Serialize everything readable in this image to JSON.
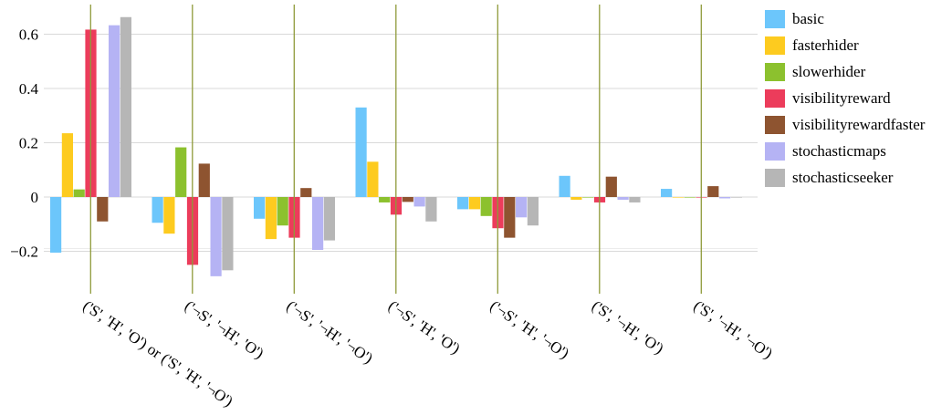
{
  "chart_data": {
    "type": "bar",
    "categories": [
      "('S', 'H', 'O') or ('S', 'H', '¬O')",
      "('¬S', '¬H', 'O')",
      "('¬S', '¬H', '¬O')",
      "('¬S', 'H', 'O')",
      "('¬S', 'H', '¬O')",
      "('S', '¬H', 'O')",
      "('S', '¬H', '¬O')"
    ],
    "series": [
      {
        "name": "basic",
        "color": "#6cc6fb",
        "values": [
          -0.205,
          -0.095,
          -0.08,
          0.33,
          -0.045,
          0.078,
          0.03
        ]
      },
      {
        "name": "fasterhider",
        "color": "#fdcb1f",
        "values": [
          0.235,
          -0.135,
          -0.155,
          0.13,
          -0.045,
          -0.01,
          0.0
        ]
      },
      {
        "name": "slowerhider",
        "color": "#8cc12e",
        "values": [
          0.028,
          0.183,
          -0.105,
          -0.02,
          -0.07,
          0.0,
          0.0
        ]
      },
      {
        "name": "visibilityreward",
        "color": "#ec3c5b",
        "values": [
          0.617,
          -0.25,
          -0.15,
          -0.065,
          -0.115,
          -0.02,
          0.0
        ]
      },
      {
        "name": "visibilityrewardfaster",
        "color": "#8e5430",
        "values": [
          -0.09,
          0.123,
          0.033,
          -0.018,
          -0.15,
          0.075,
          0.04
        ]
      },
      {
        "name": "stochasticmaps",
        "color": "#b5b3f4",
        "values": [
          0.633,
          -0.292,
          -0.195,
          -0.035,
          -0.075,
          -0.01,
          -0.005
        ]
      },
      {
        "name": "stochasticseeker",
        "color": "#b6b6b6",
        "values": [
          0.663,
          -0.27,
          -0.16,
          -0.09,
          -0.105,
          -0.02,
          0.0
        ]
      }
    ],
    "yticks": [
      "0.6",
      "0.4",
      "0.2",
      "0",
      "−0.2"
    ],
    "ytick_values": [
      0.6,
      0.4,
      0.2,
      0,
      -0.2
    ],
    "ylim": [
      -0.3,
      0.72
    ],
    "grid": true,
    "legend_position": "right"
  }
}
